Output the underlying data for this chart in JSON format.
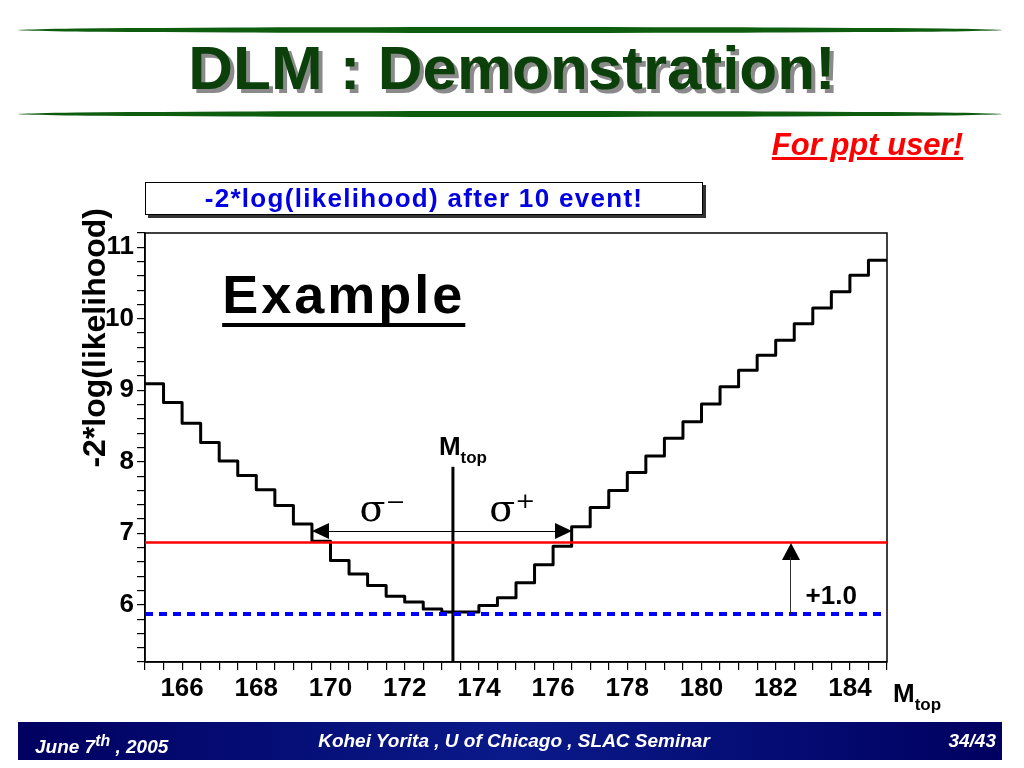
{
  "chart_data": {
    "type": "histogram",
    "title": "DLM : Demonstration!",
    "subtitle": "-2*log(likelihood) after 10 event!",
    "xlabel": "M$_{top}$",
    "ylabel": "-2*log(likelihood)",
    "bins": [
      165,
      165.5,
      166,
      166.5,
      167,
      167.5,
      168,
      168.5,
      169,
      169.5,
      170,
      170.5,
      171,
      171.5,
      172,
      172.5,
      173,
      173.5,
      174,
      174.5,
      175,
      175.5,
      176,
      176.5,
      177,
      177.5,
      178,
      178.5,
      179,
      179.5,
      180,
      180.5,
      181,
      181.5,
      182,
      182.5,
      183,
      183.5,
      184,
      184.5,
      185
    ],
    "values": [
      9.09,
      8.83,
      8.54,
      8.27,
      8.01,
      7.81,
      7.61,
      7.39,
      7.13,
      6.89,
      6.62,
      6.43,
      6.27,
      6.12,
      6.04,
      5.94,
      5.9,
      5.9,
      5.99,
      6.1,
      6.31,
      6.56,
      6.82,
      7.09,
      7.36,
      7.6,
      7.85,
      8.08,
      8.33,
      8.56,
      8.81,
      9.05,
      9.28,
      9.49,
      9.7,
      9.93,
      10.15,
      10.38,
      10.61,
      10.82
    ],
    "color": "#000000",
    "xlim": [
      165,
      185
    ],
    "ylim": [
      5.2,
      11.2
    ],
    "xticks": [
      {
        "value": 165,
        "label": null
      },
      {
        "value": 165.5,
        "label": null
      },
      166,
      {
        "value": 166.5,
        "label": null
      },
      {
        "value": 167,
        "label": null
      },
      {
        "value": 167.5,
        "label": null
      },
      168,
      {
        "value": 168.5,
        "label": null
      },
      {
        "value": 169,
        "label": null
      },
      {
        "value": 169.5,
        "label": null
      },
      170,
      {
        "value": 170.5,
        "label": null
      },
      {
        "value": 171,
        "label": null
      },
      {
        "value": 171.5,
        "label": null
      },
      172,
      {
        "value": 172.5,
        "label": null
      },
      {
        "value": 173,
        "label": null
      },
      {
        "value": 173.5,
        "label": null
      },
      174,
      {
        "value": 174.5,
        "label": null
      },
      {
        "value": 175,
        "label": null
      },
      {
        "value": 175.5,
        "label": null
      },
      176,
      {
        "value": 176.5,
        "label": null
      },
      {
        "value": 177,
        "label": null
      },
      {
        "value": 177.5,
        "label": null
      },
      178,
      {
        "value": 178.5,
        "label": null
      },
      {
        "value": 179,
        "label": null
      },
      {
        "value": 179.5,
        "label": null
      },
      180,
      {
        "value": 180.5,
        "label": null
      },
      {
        "value": 181,
        "label": null
      },
      {
        "value": 181.5,
        "label": null
      },
      182,
      {
        "value": 182.5,
        "label": null
      },
      {
        "value": 183,
        "label": null
      },
      {
        "value": 183.5,
        "label": null
      },
      184,
      {
        "value": 184.5,
        "label": null
      },
      {
        "value": 185,
        "label": null
      }
    ],
    "yticks": [
      {
        "value": 5.2,
        "label": null
      },
      {
        "value": 5.4,
        "label": null
      },
      {
        "value": 5.6,
        "label": null
      },
      {
        "value": 5.8,
        "label": null
      },
      6,
      {
        "value": 6.2,
        "label": null
      },
      {
        "value": 6.4,
        "label": null
      },
      {
        "value": 6.6,
        "label": null
      },
      {
        "value": 6.8,
        "label": null
      },
      7,
      {
        "value": 7.2,
        "label": null
      },
      {
        "value": 7.4,
        "label": null
      },
      {
        "value": 7.6,
        "label": null
      },
      {
        "value": 7.8,
        "label": null
      },
      8,
      {
        "value": 8.2,
        "label": null
      },
      {
        "value": 8.4,
        "label": null
      },
      {
        "value": 8.6,
        "label": null
      },
      {
        "value": 8.8,
        "label": null
      },
      9,
      {
        "value": 9.2,
        "label": null
      },
      {
        "value": 9.4,
        "label": null
      },
      {
        "value": 9.6,
        "label": null
      },
      {
        "value": 9.8,
        "label": null
      },
      10,
      {
        "value": 10.2,
        "label": null
      },
      {
        "value": 10.4,
        "label": null
      },
      {
        "value": 10.6,
        "label": null
      },
      {
        "value": 10.8,
        "label": null
      },
      11,
      {
        "value": 11.2,
        "label": null
      }
    ],
    "ref_lines": [
      {
        "axis": "x",
        "value": 173.3,
        "label": "M$_{top}$",
        "color": "#000000"
      },
      {
        "axis": "y",
        "value": 6.87,
        "color": "#ff0000"
      },
      {
        "axis": "y",
        "value": 5.87,
        "color": "#0000ff",
        "line_style": "dashed"
      }
    ],
    "annotations": [
      "Example",
      "For ppt user!",
      {
        "text": "σ⁻",
        "x": 169.5,
        "y": 7.03
      },
      {
        "text": "σ⁺",
        "x": 176.5,
        "y": 7.03
      },
      {
        "text": "+1.0",
        "x": 182.4,
        "y": 6.87
      },
      "June 7$^{th}$ , 2005",
      "Kohei Yorita , U of Chicago , SLAC Seminar",
      "34/43"
    ],
    "grid": false,
    "legend": false,
    "marker": "none"
  }
}
